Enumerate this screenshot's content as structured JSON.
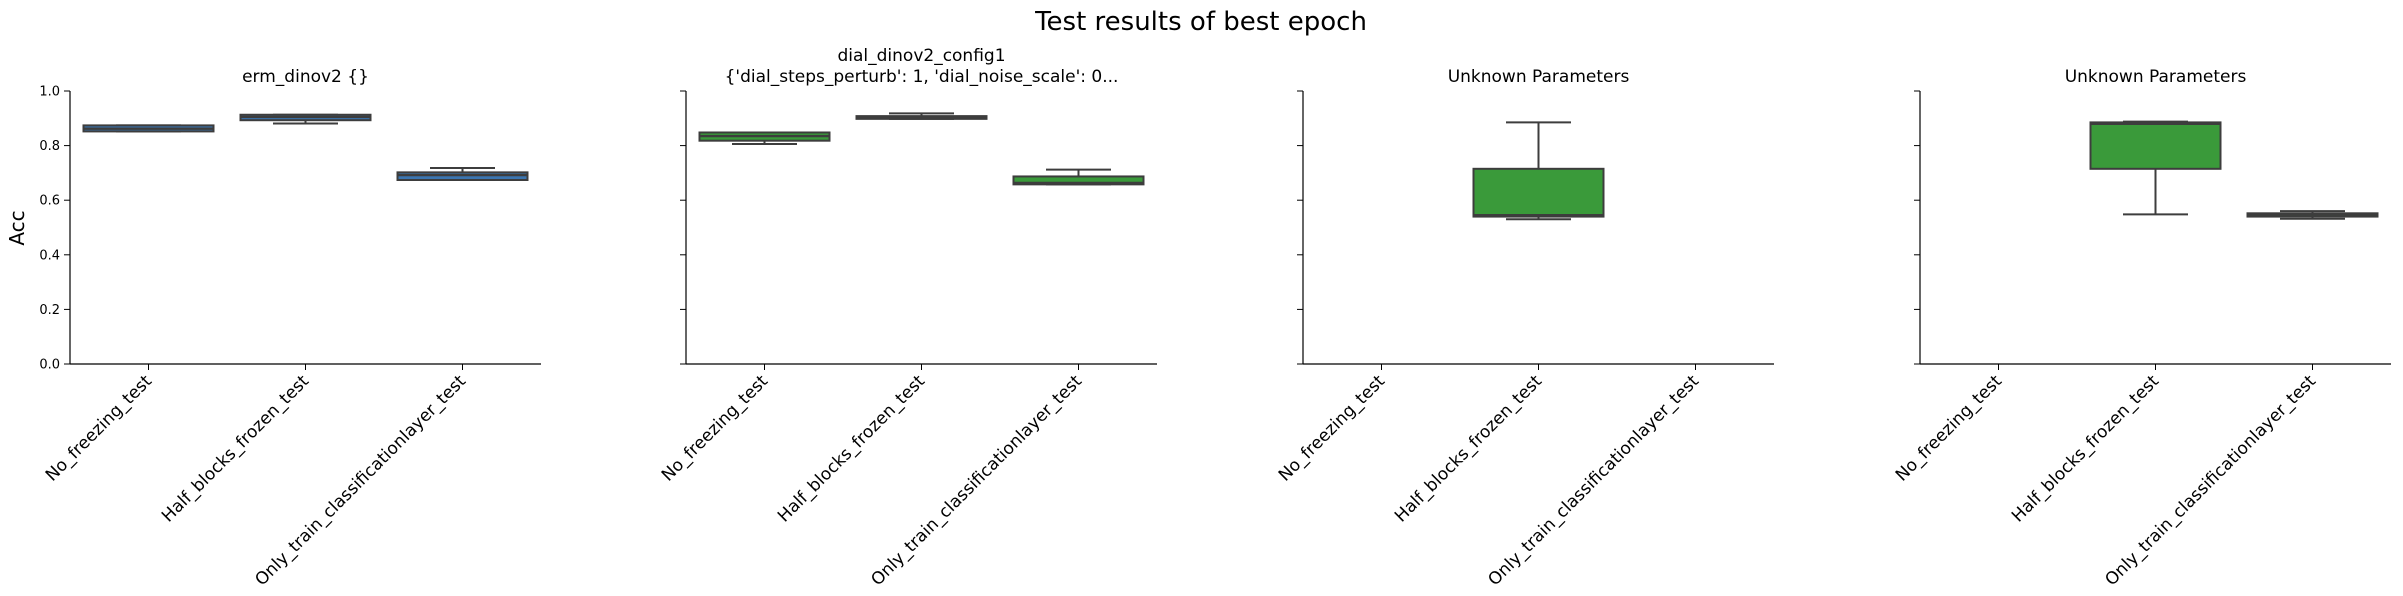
{
  "figure": {
    "title": "Test results of best epoch"
  },
  "chart_data": [
    {
      "type": "box",
      "title_lines": [
        "erm_dinov2         {}"
      ],
      "ylabel": "Acc",
      "ylim": [
        0,
        1
      ],
      "yticks": [
        0.0,
        0.2,
        0.4,
        0.6,
        0.8,
        1.0
      ],
      "ytick_labels": [
        "0.0",
        "0.2",
        "0.4",
        "0.6",
        "0.8",
        "1.0"
      ],
      "categories": [
        "No_freezing_test",
        "Half_blocks_frozen_test",
        "Only_train_classificationlayer_test"
      ],
      "boxes": [
        {
          "category": "No_freezing_test",
          "whislo": 0.852,
          "q1": 0.852,
          "med": 0.862,
          "q3": 0.874,
          "whishi": 0.874,
          "color": "#3a75b0"
        },
        {
          "category": "Half_blocks_frozen_test",
          "whislo": 0.881,
          "q1": 0.893,
          "med": 0.905,
          "q3": 0.913,
          "whishi": 0.913,
          "color": "#3a75b0"
        },
        {
          "category": "Only_train_classificationlayer_test",
          "whislo": 0.674,
          "q1": 0.674,
          "med": 0.692,
          "q3": 0.702,
          "whishi": 0.718,
          "color": "#3a75b0"
        }
      ]
    },
    {
      "type": "box",
      "title_lines": [
        "dial_dinov2_config1",
        "{'dial_steps_perturb': 1, 'dial_noise_scale': 0..."
      ],
      "ylim": [
        0,
        1
      ],
      "yticks": [
        0.0,
        0.2,
        0.4,
        0.6,
        0.8,
        1.0
      ],
      "categories": [
        "No_freezing_test",
        "Half_blocks_frozen_test",
        "Only_train_classificationlayer_test"
      ],
      "boxes": [
        {
          "category": "No_freezing_test",
          "whislo": 0.806,
          "q1": 0.818,
          "med": 0.835,
          "q3": 0.848,
          "whishi": 0.848,
          "color": "#3a9a3a"
        },
        {
          "category": "Half_blocks_frozen_test",
          "whislo": 0.898,
          "q1": 0.898,
          "med": 0.902,
          "q3": 0.908,
          "whishi": 0.918,
          "color": "#3a9a3a"
        },
        {
          "category": "Only_train_classificationlayer_test",
          "whislo": 0.658,
          "q1": 0.658,
          "med": 0.663,
          "q3": 0.687,
          "whishi": 0.712,
          "color": "#3a9a3a"
        }
      ]
    },
    {
      "type": "box",
      "title_lines": [
        "Unknown Parameters"
      ],
      "ylim": [
        0,
        1
      ],
      "yticks": [
        0.0,
        0.2,
        0.4,
        0.6,
        0.8,
        1.0
      ],
      "categories": [
        "No_freezing_test",
        "Half_blocks_frozen_test",
        "Only_train_classificationlayer_test"
      ],
      "boxes": [
        {
          "category": "Half_blocks_frozen_test",
          "whislo": 0.53,
          "q1": 0.54,
          "med": 0.545,
          "q3": 0.715,
          "whishi": 0.885,
          "color": "#3a9a3a"
        }
      ]
    },
    {
      "type": "box",
      "title_lines": [
        "Unknown Parameters"
      ],
      "ylim": [
        0,
        1
      ],
      "yticks": [
        0.0,
        0.2,
        0.4,
        0.6,
        0.8,
        1.0
      ],
      "categories": [
        "No_freezing_test",
        "Half_blocks_frozen_test",
        "Only_train_classificationlayer_test"
      ],
      "boxes": [
        {
          "category": "Half_blocks_frozen_test",
          "whislo": 0.548,
          "q1": 0.715,
          "med": 0.88,
          "q3": 0.885,
          "whishi": 0.888,
          "color": "#3a9a3a"
        },
        {
          "category": "Only_train_classificationlayer_test",
          "whislo": 0.532,
          "q1": 0.54,
          "med": 0.547,
          "q3": 0.552,
          "whishi": 0.56,
          "color": "#3a9a3a"
        }
      ]
    }
  ]
}
